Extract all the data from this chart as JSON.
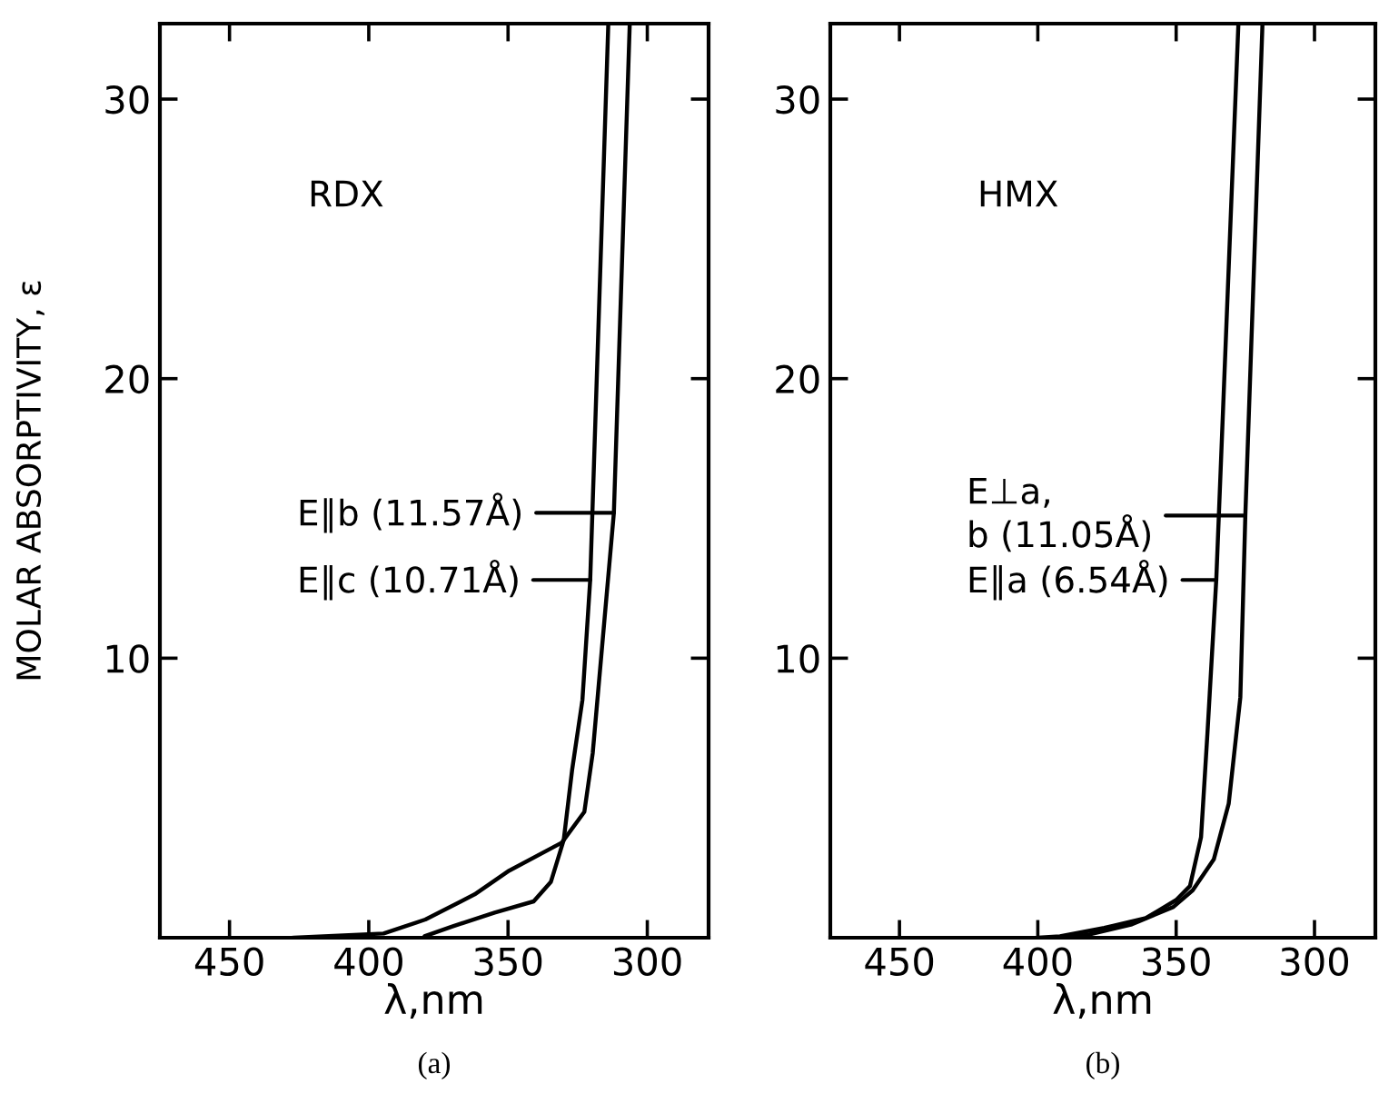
{
  "chart_data": [
    {
      "type": "line",
      "xlabel": "λ,nm",
      "ylabel": "MOLAR ABSORPTIVITY, ε",
      "xlim": [
        475,
        278
      ],
      "ylim": [
        0,
        32.7
      ],
      "xticks": [
        450,
        400,
        350,
        300
      ],
      "yticks": [
        10,
        20,
        30
      ],
      "grid": false,
      "legend": false,
      "marker": "none",
      "line_style": "solid",
      "series": [
        {
          "color": "#000000",
          "x": [
            427,
            394.7,
            379.7,
            362,
            349.6,
            330.7,
            322.6,
            319.6,
            312,
            306.3
          ],
          "values": [
            0,
            0.15,
            0.65,
            1.55,
            2.4,
            3.4,
            4.5,
            6.6,
            15.2,
            32.7
          ]
        },
        {
          "color": "#000000",
          "x": [
            375,
            380,
            370,
            354.8,
            340.8,
            334.6,
            330,
            327,
            323.3,
            320.5,
            314
          ],
          "values": [
            0,
            0.05,
            0.4,
            0.9,
            1.3,
            2.0,
            3.5,
            6.0,
            8.5,
            12.8,
            32.7
          ]
        }
      ],
      "annotations": [
        "RDX",
        {
          "text": "E∥b (11.57Å)",
          "x": 312,
          "y": 15.2
        },
        {
          "text": "E∥c (10.71Å)",
          "x": 320.5,
          "y": 12.8
        },
        "(a)"
      ]
    },
    {
      "type": "line",
      "xlabel": "λ,nm",
      "xlim": [
        475,
        278
      ],
      "ylim": [
        0,
        32.7
      ],
      "xticks": [
        450,
        400,
        350,
        300
      ],
      "yticks": [
        10,
        20,
        30
      ],
      "grid": false,
      "legend": false,
      "marker": "none",
      "line_style": "solid",
      "series": [
        {
          "color": "#000000",
          "x": [
            400,
            392,
            376,
            361,
            350,
            345,
            341,
            338.7,
            335.5,
            327.5
          ],
          "values": [
            0,
            0.05,
            0.35,
            0.7,
            1.35,
            1.85,
            3.6,
            7.3,
            12.8,
            32.7
          ]
        },
        {
          "color": "#000000",
          "x": [
            395,
            382,
            366,
            351,
            344,
            336.4,
            331,
            326.8,
            325,
            318.8
          ],
          "values": [
            0,
            0.1,
            0.48,
            1.1,
            1.7,
            2.8,
            4.8,
            8.6,
            15.1,
            32.7
          ]
        }
      ],
      "annotations": [
        "HMX",
        {
          "text": "E⊥a,\nb (11.05Å)",
          "x": 325,
          "y": 15.1
        },
        {
          "text": "E∥a (6.54Å)",
          "x": 335.5,
          "y": 12.8
        },
        "(b)"
      ]
    }
  ]
}
